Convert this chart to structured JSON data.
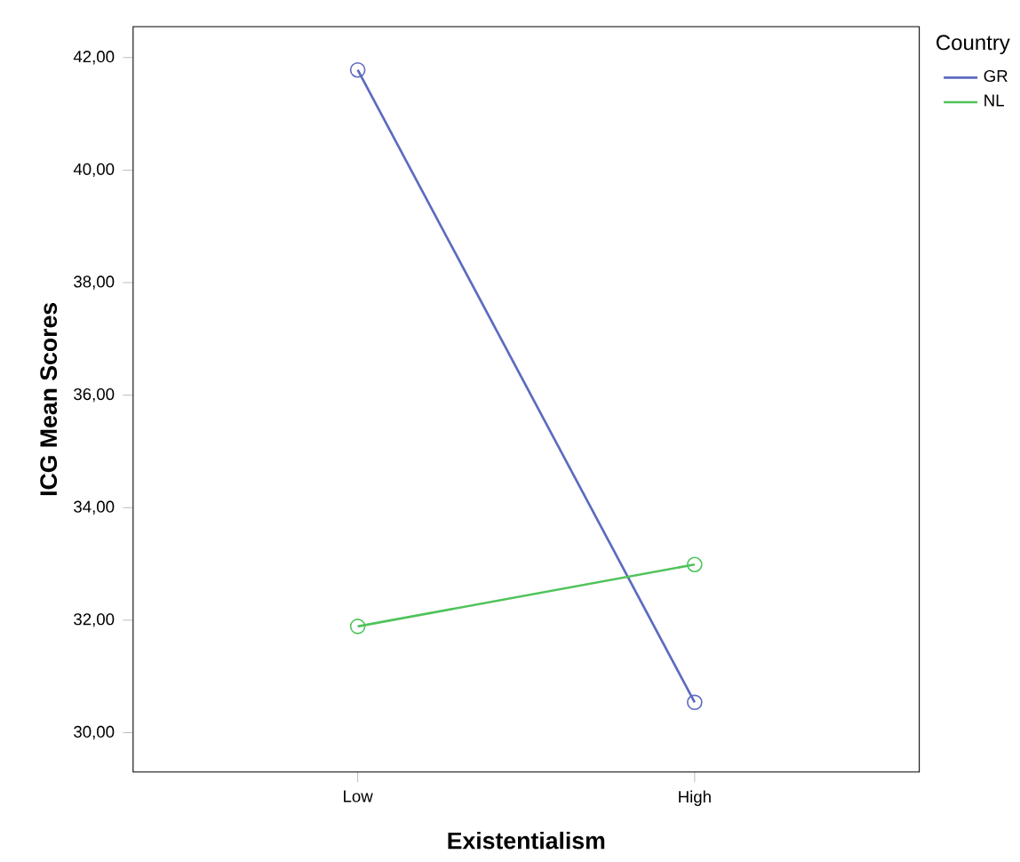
{
  "chart_data": {
    "type": "line",
    "xlabel": "Existentialism",
    "ylabel": "ICG Mean Scores",
    "legend_title": "Country",
    "legend": "top right",
    "marker": "circle",
    "categories": [
      "Low",
      "High"
    ],
    "series": [
      {
        "name": "GR",
        "color": "#5b6bbf",
        "values": [
          41.78,
          30.54
        ]
      },
      {
        "name": "NL",
        "color": "#4fc35a",
        "values": [
          31.89,
          32.99
        ]
      }
    ],
    "ylim": [
      29.3,
      42.55
    ],
    "yticks": [
      {
        "value": 30,
        "label": "30,00"
      },
      {
        "value": 32,
        "label": "32,00"
      },
      {
        "value": 34,
        "label": "34,00"
      },
      {
        "value": 36,
        "label": "36,00"
      },
      {
        "value": 38,
        "label": "38,00"
      },
      {
        "value": 40,
        "label": "40,00"
      },
      {
        "value": 42,
        "label": "42,00"
      }
    ]
  }
}
